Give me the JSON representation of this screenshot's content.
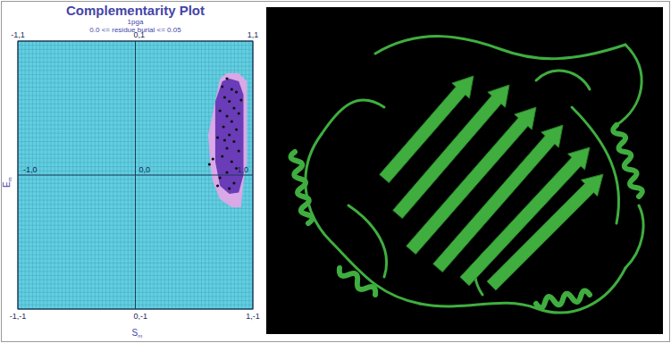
{
  "chart_data": {
    "type": "scatter",
    "title": "Complementarity Plot",
    "subtitle": [
      "1pga",
      "0.0 <= residue burial <= 0.05"
    ],
    "xlabel": "Sm",
    "ylabel": "Em",
    "xlim": [
      -1,
      1
    ],
    "ylim": [
      -1,
      1
    ],
    "xticks": [
      -1,
      0,
      1
    ],
    "yticks": [
      -1,
      0,
      1
    ],
    "tick_labels": false,
    "grid": true,
    "color": "#111111",
    "marker": "circle",
    "x": [
      0.78,
      0.74,
      0.82,
      0.86,
      0.76,
      0.8,
      0.84,
      0.72,
      0.78,
      0.88,
      0.82,
      0.75,
      0.86,
      0.8,
      0.7,
      0.84,
      0.78,
      0.88,
      0.74,
      0.82,
      0.66,
      0.86,
      0.78,
      0.72,
      0.84,
      0.8,
      0.63,
      0.9,
      0.76,
      0.7
    ],
    "y": [
      0.72,
      0.66,
      0.64,
      0.62,
      0.58,
      0.55,
      0.5,
      0.48,
      0.44,
      0.46,
      0.4,
      0.36,
      0.34,
      0.3,
      0.28,
      0.25,
      0.2,
      0.18,
      0.14,
      0.1,
      0.12,
      0.05,
      0.02,
      -0.02,
      -0.06,
      -0.1,
      0.08,
      0.56,
      0.26,
      -0.08
    ],
    "regions": [
      {
        "color": "#d9a8e6",
        "x": [
          0.62,
          0.72,
          0.78,
          0.88,
          0.95,
          0.95,
          0.92,
          0.9,
          0.82,
          0.72,
          0.66,
          0.64
        ],
        "y": [
          0.3,
          0.72,
          0.76,
          0.76,
          0.7,
          0.1,
          -0.05,
          -0.24,
          -0.24,
          -0.18,
          -0.05,
          0.05
        ]
      },
      {
        "color": "#6a3cb8",
        "x": [
          0.68,
          0.74,
          0.8,
          0.88,
          0.92,
          0.92,
          0.88,
          0.8,
          0.72,
          0.68
        ],
        "y": [
          0.55,
          0.7,
          0.72,
          0.7,
          0.6,
          0.0,
          -0.13,
          -0.14,
          -0.08,
          0.1
        ]
      }
    ],
    "annotations": [
      {
        "text": "-1,1",
        "x": -1,
        "y": 1
      },
      {
        "text": "0,1",
        "x": 0,
        "y": 1
      },
      {
        "text": "1,1",
        "x": 1,
        "y": 1
      },
      {
        "text": "-1,0",
        "x": -1,
        "y": 0
      },
      {
        "text": "0,0",
        "x": 0,
        "y": 0
      },
      {
        "text": "1,0",
        "x": 1,
        "y": 0
      },
      {
        "text": "-1,-1",
        "x": -1,
        "y": -1
      },
      {
        "text": "0,-1",
        "x": 0,
        "y": -1
      },
      {
        "text": "1,-1",
        "x": 1,
        "y": -1
      }
    ]
  }
}
